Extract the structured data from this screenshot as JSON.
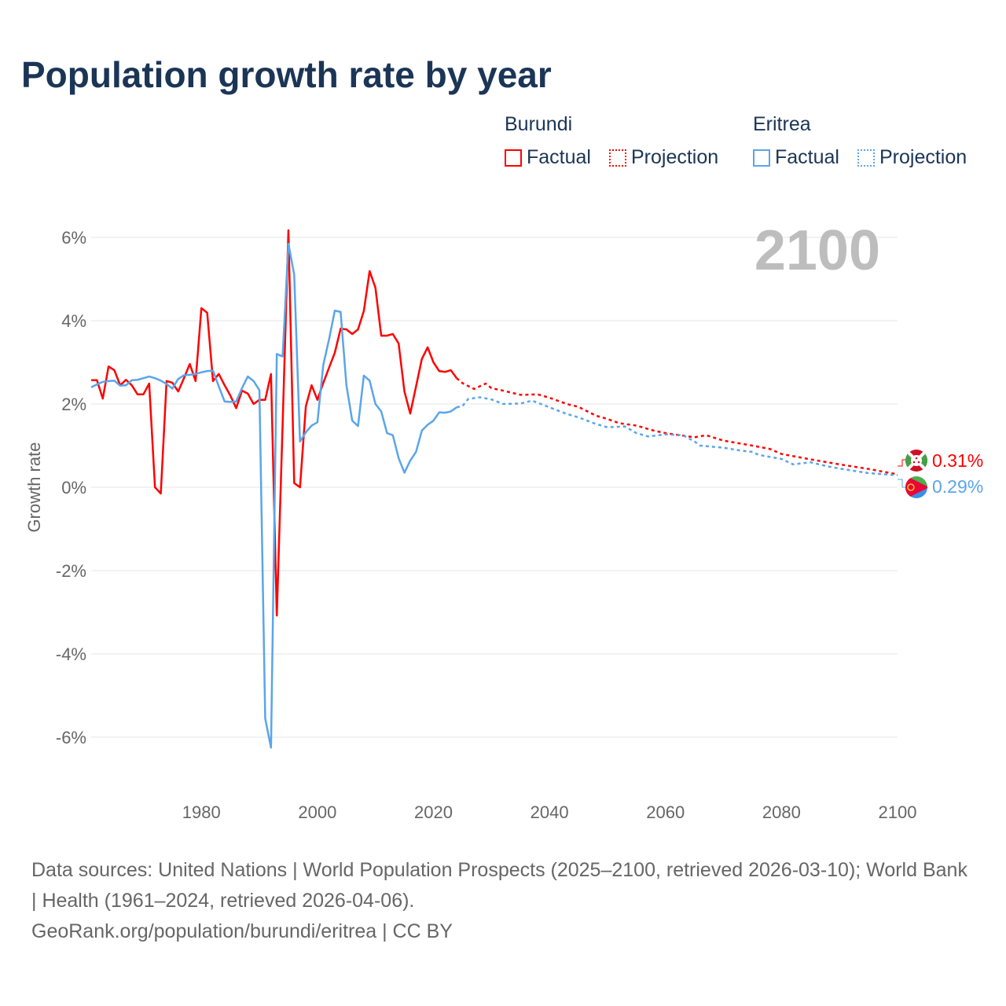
{
  "title": "Population growth rate by year",
  "legend": {
    "groups": [
      {
        "name": "Burundi",
        "color": "#ff0000",
        "factual": "Factual",
        "projection": "Projection"
      },
      {
        "name": "Eritrea",
        "color": "#5aa5ea",
        "factual": "Factual",
        "projection": "Projection"
      }
    ]
  },
  "year_display": "2100",
  "end_labels": [
    {
      "country": "Burundi",
      "value": "0.31%",
      "flag": "burundi-flag"
    },
    {
      "country": "Eritrea",
      "value": "0.29%",
      "flag": "eritrea-flag"
    }
  ],
  "footer": {
    "sources": "Data sources: United Nations | World Population Prospects (2025–2100, retrieved 2026-03-10); World Bank | Health (1961–2024, retrieved 2026-04-06).",
    "credit": "GeoRank.org/population/burundi/eritrea | CC BY"
  },
  "chart_data": {
    "type": "line",
    "title": "Population growth rate by year",
    "xlabel": "",
    "ylabel": "Growth rate",
    "xlim": [
      1961,
      2100
    ],
    "ylim": [
      -7,
      6.5
    ],
    "x_ticks": [
      1980,
      2000,
      2020,
      2040,
      2060,
      2080,
      2100
    ],
    "x_tick_labels": [
      "1980",
      "2000",
      "2020",
      "2040",
      "2060",
      "2080",
      "2100"
    ],
    "y_ticks": [
      6,
      4,
      2,
      0,
      -2,
      -4,
      -6
    ],
    "y_tick_labels": [
      "6%",
      "4%",
      "2%",
      "0%",
      "-2%",
      "-4%",
      "-6%"
    ],
    "grid": true,
    "legend_position": "top-right",
    "series": [
      {
        "name": "Burundi",
        "color": "#ff0000",
        "factual": {
          "start_year": 1961,
          "values": [
            2.57,
            2.57,
            2.13,
            2.9,
            2.81,
            2.45,
            2.58,
            2.45,
            2.23,
            2.23,
            2.49,
            0.0,
            -0.15,
            2.55,
            2.51,
            2.3,
            2.62,
            2.96,
            2.55,
            4.3,
            4.19,
            2.55,
            2.72,
            2.45,
            2.2,
            1.9,
            2.32,
            2.25,
            2.0,
            2.1,
            2.1,
            2.72,
            -3.08,
            1.5,
            6.17,
            0.1,
            0.0,
            1.94,
            2.45,
            2.1,
            2.5,
            2.87,
            3.23,
            3.81,
            3.79,
            3.68,
            3.79,
            4.23,
            5.19,
            4.79,
            3.64,
            3.64,
            3.68,
            3.45,
            2.3,
            1.77,
            2.42,
            3.08,
            3.36,
            3.0,
            2.79,
            2.77,
            2.81,
            2.62
          ]
        },
        "projection": [
          [
            2024,
            2.62
          ],
          [
            2025,
            2.5
          ],
          [
            2027,
            2.36
          ],
          [
            2029,
            2.49
          ],
          [
            2030,
            2.38
          ],
          [
            2032,
            2.32
          ],
          [
            2035,
            2.22
          ],
          [
            2038,
            2.23
          ],
          [
            2040,
            2.15
          ],
          [
            2043,
            2.0
          ],
          [
            2045,
            1.93
          ],
          [
            2048,
            1.72
          ],
          [
            2050,
            1.64
          ],
          [
            2052,
            1.54
          ],
          [
            2055,
            1.48
          ],
          [
            2058,
            1.36
          ],
          [
            2060,
            1.3
          ],
          [
            2065,
            1.2
          ],
          [
            2067,
            1.25
          ],
          [
            2070,
            1.12
          ],
          [
            2075,
            1.0
          ],
          [
            2078,
            0.92
          ],
          [
            2080,
            0.8
          ],
          [
            2085,
            0.67
          ],
          [
            2090,
            0.55
          ],
          [
            2095,
            0.44
          ],
          [
            2100,
            0.31
          ]
        ]
      },
      {
        "name": "Eritrea",
        "color": "#5aa5ea",
        "factual": {
          "start_year": 1961,
          "values": [
            2.4,
            2.47,
            2.53,
            2.55,
            2.56,
            2.44,
            2.45,
            2.57,
            2.58,
            2.62,
            2.66,
            2.62,
            2.56,
            2.48,
            2.37,
            2.6,
            2.69,
            2.7,
            2.72,
            2.76,
            2.79,
            2.8,
            2.42,
            2.06,
            2.05,
            2.06,
            2.38,
            2.66,
            2.55,
            2.33,
            -5.55,
            -6.25,
            3.2,
            3.14,
            5.85,
            5.1,
            1.1,
            1.32,
            1.48,
            1.56,
            2.93,
            3.55,
            4.24,
            4.21,
            2.45,
            1.6,
            1.47,
            2.68,
            2.56,
            2.0,
            1.82,
            1.3,
            1.25,
            0.7,
            0.35,
            0.64,
            0.85,
            1.36,
            1.5,
            1.6,
            1.8,
            1.79,
            1.82,
            1.92
          ]
        },
        "projection": [
          [
            2024,
            1.92
          ],
          [
            2025,
            1.95
          ],
          [
            2026,
            2.12
          ],
          [
            2028,
            2.16
          ],
          [
            2030,
            2.11
          ],
          [
            2032,
            2.0
          ],
          [
            2035,
            2.01
          ],
          [
            2037,
            2.08
          ],
          [
            2040,
            1.92
          ],
          [
            2043,
            1.76
          ],
          [
            2045,
            1.68
          ],
          [
            2048,
            1.52
          ],
          [
            2050,
            1.44
          ],
          [
            2053,
            1.46
          ],
          [
            2055,
            1.3
          ],
          [
            2057,
            1.22
          ],
          [
            2060,
            1.27
          ],
          [
            2063,
            1.25
          ],
          [
            2065,
            1.1
          ],
          [
            2066,
            1.0
          ],
          [
            2070,
            0.95
          ],
          [
            2073,
            0.88
          ],
          [
            2075,
            0.85
          ],
          [
            2076,
            0.78
          ],
          [
            2080,
            0.68
          ],
          [
            2082,
            0.55
          ],
          [
            2085,
            0.6
          ],
          [
            2088,
            0.5
          ],
          [
            2090,
            0.45
          ],
          [
            2095,
            0.34
          ],
          [
            2100,
            0.29
          ]
        ]
      }
    ]
  }
}
